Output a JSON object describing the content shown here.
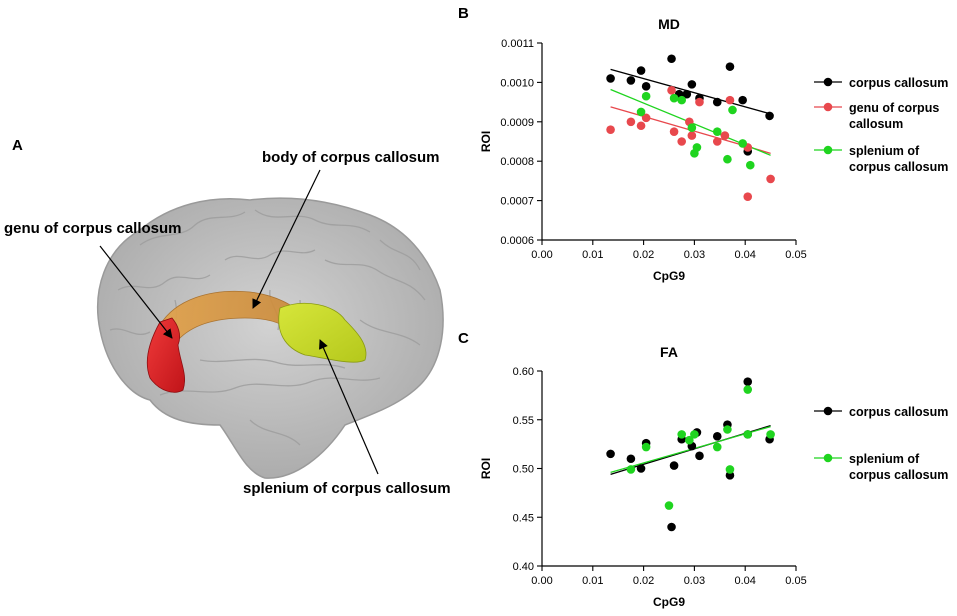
{
  "panels": {
    "a": "A",
    "b": "B",
    "c": "C"
  },
  "brain": {
    "labels": {
      "genu": "genu of corpus callosum",
      "body": "body of corpus callosum",
      "splenium": "splenium of corpus callosum"
    },
    "colors": {
      "genu": "#e0222a",
      "body": "#d9a046",
      "splenium": "#c8dd2a",
      "brain": "#bfbfbf"
    }
  },
  "chart_data": [
    {
      "type": "scatter",
      "title": "MD",
      "xlabel": "CpG9",
      "ylabel": "ROI",
      "xlim": [
        0.0,
        0.05
      ],
      "ylim": [
        0.0006,
        0.0011
      ],
      "xticks": [
        "0.00",
        "0.01",
        "0.02",
        "0.03",
        "0.04",
        "0.05"
      ],
      "xtick_values": [
        0,
        0.01,
        0.02,
        0.03,
        0.04,
        0.05
      ],
      "yticks": [
        "0.0006",
        "0.0007",
        "0.0008",
        "0.0009",
        "0.0010",
        "0.0011"
      ],
      "ytick_values": [
        0.0006,
        0.0007,
        0.0008,
        0.0009,
        0.001,
        0.0011
      ],
      "legend_position": "right",
      "series": [
        {
          "name": "corpus callosum",
          "legend": [
            "corpus callosum"
          ],
          "color": "#000000",
          "fit": [
            [
              0.0135,
              0.001033
            ],
            [
              0.045,
              0.00092
            ]
          ],
          "points": [
            [
              0.0135,
              0.00101
            ],
            [
              0.0175,
              0.001005
            ],
            [
              0.0195,
              0.00103
            ],
            [
              0.0205,
              0.00099
            ],
            [
              0.0255,
              0.00106
            ],
            [
              0.027,
              0.00097
            ],
            [
              0.0285,
              0.00097
            ],
            [
              0.0295,
              0.000995
            ],
            [
              0.031,
              0.00096
            ],
            [
              0.0345,
              0.00095
            ],
            [
              0.037,
              0.00104
            ],
            [
              0.0395,
              0.000955
            ],
            [
              0.0405,
              0.000825
            ],
            [
              0.0448,
              0.000915
            ]
          ]
        },
        {
          "name": "genu of corpus callosum",
          "legend": [
            "genu of corpus",
            "callosum"
          ],
          "color": "#e8484d",
          "fit": [
            [
              0.0135,
              0.000938
            ],
            [
              0.045,
              0.00082
            ]
          ],
          "points": [
            [
              0.0135,
              0.00088
            ],
            [
              0.0175,
              0.0009
            ],
            [
              0.0195,
              0.00089
            ],
            [
              0.0205,
              0.00091
            ],
            [
              0.0255,
              0.00098
            ],
            [
              0.026,
              0.000875
            ],
            [
              0.0275,
              0.00085
            ],
            [
              0.029,
              0.0009
            ],
            [
              0.0295,
              0.000865
            ],
            [
              0.031,
              0.00095
            ],
            [
              0.0345,
              0.00085
            ],
            [
              0.036,
              0.000865
            ],
            [
              0.037,
              0.000955
            ],
            [
              0.0405,
              0.000835
            ],
            [
              0.0405,
              0.00071
            ],
            [
              0.045,
              0.000755
            ]
          ]
        },
        {
          "name": "splenium of corpus callosum",
          "legend": [
            "splenium of",
            "corpus callosum"
          ],
          "color": "#1fd41f",
          "fit": [
            [
              0.0135,
              0.000982
            ],
            [
              0.045,
              0.000815
            ]
          ],
          "points": [
            [
              0.0195,
              0.000925
            ],
            [
              0.0205,
              0.000965
            ],
            [
              0.026,
              0.00096
            ],
            [
              0.0275,
              0.000955
            ],
            [
              0.0295,
              0.000885
            ],
            [
              0.03,
              0.00082
            ],
            [
              0.0305,
              0.000835
            ],
            [
              0.0345,
              0.000875
            ],
            [
              0.0365,
              0.000805
            ],
            [
              0.0375,
              0.00093
            ],
            [
              0.0395,
              0.000845
            ],
            [
              0.041,
              0.00079
            ]
          ]
        }
      ]
    },
    {
      "type": "scatter",
      "title": "FA",
      "xlabel": "CpG9",
      "ylabel": "ROI",
      "xlim": [
        0.0,
        0.05
      ],
      "ylim": [
        0.4,
        0.6
      ],
      "xticks": [
        "0.00",
        "0.01",
        "0.02",
        "0.03",
        "0.04",
        "0.05"
      ],
      "xtick_values": [
        0,
        0.01,
        0.02,
        0.03,
        0.04,
        0.05
      ],
      "yticks": [
        "0.40",
        "0.45",
        "0.50",
        "0.55",
        "0.60"
      ],
      "ytick_values": [
        0.4,
        0.45,
        0.5,
        0.55,
        0.6
      ],
      "legend_position": "right",
      "series": [
        {
          "name": "corpus callosum",
          "legend": [
            "corpus callosum"
          ],
          "color": "#000000",
          "fit": [
            [
              0.0135,
              0.494
            ],
            [
              0.045,
              0.544
            ]
          ],
          "points": [
            [
              0.0135,
              0.515
            ],
            [
              0.0175,
              0.51
            ],
            [
              0.0195,
              0.5
            ],
            [
              0.0205,
              0.526
            ],
            [
              0.0255,
              0.44
            ],
            [
              0.026,
              0.503
            ],
            [
              0.0275,
              0.53
            ],
            [
              0.0295,
              0.523
            ],
            [
              0.0305,
              0.537
            ],
            [
              0.031,
              0.513
            ],
            [
              0.0345,
              0.533
            ],
            [
              0.0365,
              0.545
            ],
            [
              0.037,
              0.493
            ],
            [
              0.0405,
              0.535
            ],
            [
              0.0405,
              0.589
            ],
            [
              0.0448,
              0.53
            ]
          ]
        },
        {
          "name": "splenium of corpus callosum",
          "legend": [
            "splenium of",
            "corpus callosum"
          ],
          "color": "#1fd41f",
          "fit": [
            [
              0.0135,
              0.496
            ],
            [
              0.045,
              0.543
            ]
          ],
          "points": [
            [
              0.0175,
              0.499
            ],
            [
              0.0205,
              0.522
            ],
            [
              0.025,
              0.462
            ],
            [
              0.0275,
              0.535
            ],
            [
              0.029,
              0.529
            ],
            [
              0.03,
              0.535
            ],
            [
              0.0345,
              0.522
            ],
            [
              0.0365,
              0.54
            ],
            [
              0.037,
              0.499
            ],
            [
              0.0405,
              0.581
            ],
            [
              0.0405,
              0.535
            ],
            [
              0.045,
              0.535
            ]
          ]
        }
      ]
    }
  ]
}
